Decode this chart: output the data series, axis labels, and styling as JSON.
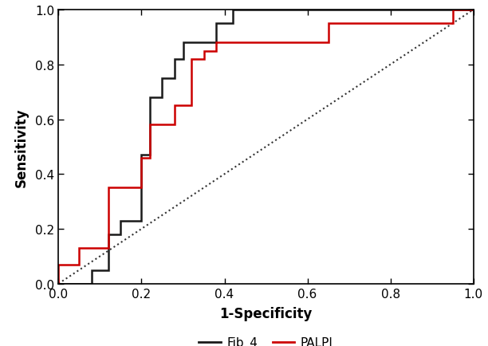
{
  "fib4_x": [
    0.0,
    0.0,
    0.08,
    0.08,
    0.12,
    0.12,
    0.15,
    0.15,
    0.2,
    0.2,
    0.22,
    0.22,
    0.25,
    0.25,
    0.28,
    0.28,
    0.3,
    0.3,
    0.35,
    0.35,
    0.38,
    0.38,
    0.42,
    0.42,
    0.55,
    0.55,
    0.62,
    0.62,
    0.9,
    0.9,
    1.0
  ],
  "fib4_y": [
    0.0,
    0.0,
    0.0,
    0.05,
    0.05,
    0.18,
    0.18,
    0.23,
    0.23,
    0.47,
    0.47,
    0.68,
    0.68,
    0.75,
    0.75,
    0.82,
    0.82,
    0.88,
    0.88,
    0.88,
    0.88,
    0.95,
    0.95,
    1.0,
    1.0,
    1.0,
    1.0,
    1.0,
    1.0,
    1.0,
    1.0
  ],
  "palbi_x": [
    0.0,
    0.0,
    0.05,
    0.05,
    0.12,
    0.12,
    0.2,
    0.2,
    0.22,
    0.22,
    0.28,
    0.28,
    0.32,
    0.32,
    0.35,
    0.35,
    0.38,
    0.38,
    0.62,
    0.62,
    0.65,
    0.65,
    0.9,
    0.9,
    0.95,
    0.95,
    1.0
  ],
  "palbi_y": [
    0.0,
    0.07,
    0.07,
    0.13,
    0.13,
    0.35,
    0.35,
    0.46,
    0.46,
    0.58,
    0.58,
    0.65,
    0.65,
    0.82,
    0.82,
    0.85,
    0.85,
    0.88,
    0.88,
    0.88,
    0.88,
    0.95,
    0.95,
    0.95,
    0.95,
    1.0,
    1.0
  ],
  "fib4_color": "#1a1a1a",
  "palbi_color": "#cc0000",
  "diagonal_color": "#333333",
  "xlabel": "1-Specificity",
  "ylabel": "Sensitivity",
  "xlim": [
    0.0,
    1.0
  ],
  "ylim": [
    0.0,
    1.0
  ],
  "xticks": [
    0.0,
    0.2,
    0.4,
    0.6,
    0.8,
    1.0
  ],
  "yticks": [
    0.0,
    0.2,
    0.4,
    0.6,
    0.8,
    1.0
  ],
  "legend_fib4": "Fib_4",
  "legend_palbi": "PALPI",
  "linewidth": 1.8,
  "fig_width": 6.12,
  "fig_height": 4.35,
  "dpi": 100
}
